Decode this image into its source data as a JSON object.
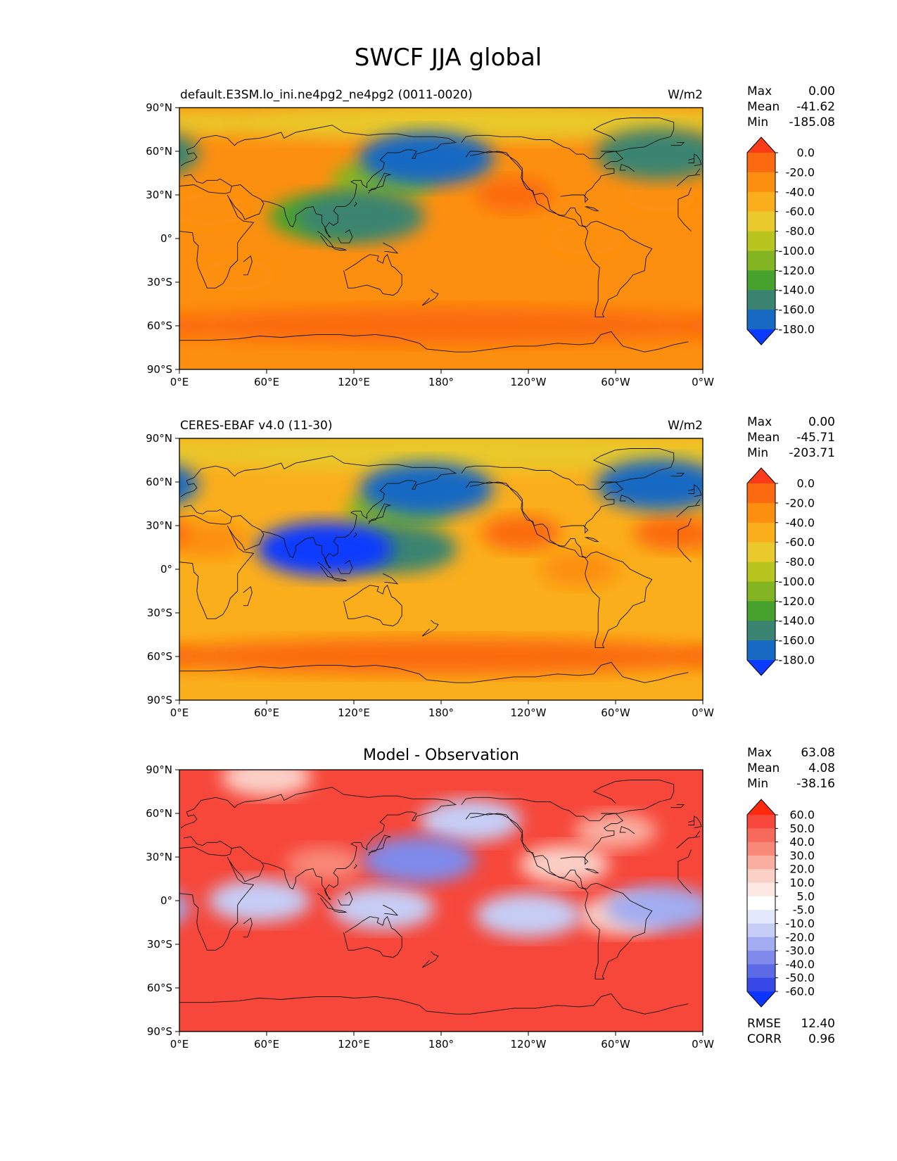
{
  "figure": {
    "title": "SWCF JJA global"
  },
  "chart_data": [
    {
      "type": "heatmap",
      "title": "default.E3SM.lo_ini.ne4pg2_ne4pg2 (0011-0020)",
      "units": "W/m2",
      "xticks": [
        "0°E",
        "60°E",
        "120°E",
        "180°",
        "120°W",
        "60°W",
        "0°W"
      ],
      "yticks": [
        "90°N",
        "60°N",
        "30°N",
        "0°",
        "30°S",
        "60°S",
        "90°S"
      ],
      "xlim": [
        0,
        360
      ],
      "ylim": [
        -90,
        90
      ],
      "stats": {
        "max": "0.00",
        "mean": "-41.62",
        "min": "-185.08"
      },
      "stat_labels": {
        "max": "Max",
        "mean": "Mean",
        "min": "Min"
      },
      "colorbar": {
        "labels": [
          "0.0",
          "-20.0",
          "-40.0",
          "-60.0",
          "-80.0",
          "-100.0",
          "-120.0",
          "-140.0",
          "-160.0",
          "-180.0"
        ],
        "colors": [
          "#ff3a1a",
          "#fb6a10",
          "#fd8f10",
          "#fbae1c",
          "#e9c92c",
          "#b9c51f",
          "#83b522",
          "#47a12d",
          "#3a8471",
          "#1769c2",
          "#0a3bff"
        ]
      },
      "fields": [
        {
          "lat": 0,
          "lon": 180,
          "value": -38
        },
        {
          "lat": -60,
          "lon": 180,
          "value": -19
        },
        {
          "lat": 55,
          "lon": 170,
          "value": -175
        },
        {
          "lat": 58,
          "lon": 330,
          "value": -160
        },
        {
          "lat": 15,
          "lon": 125,
          "value": -160
        },
        {
          "lat": 15,
          "lon": 100,
          "value": -130
        },
        {
          "lat": 40,
          "lon": 140,
          "value": -110
        },
        {
          "lat": 30,
          "lon": 230,
          "value": -20
        },
        {
          "lat": 0,
          "lon": 280,
          "value": -22
        },
        {
          "lat": 20,
          "lon": 20,
          "value": -22
        },
        {
          "lat": 30,
          "lon": 330,
          "value": -22
        },
        {
          "lat": -25,
          "lon": 40,
          "value": -25
        },
        {
          "lat": 80,
          "lon": 200,
          "value": -62
        }
      ]
    },
    {
      "type": "heatmap",
      "title": "CERES-EBAF v4.0 (11-30)",
      "units": "W/m2",
      "xticks": [
        "0°E",
        "60°E",
        "120°E",
        "180°",
        "120°W",
        "60°W",
        "0°W"
      ],
      "yticks": [
        "90°N",
        "60°N",
        "30°N",
        "0°",
        "30°S",
        "60°S",
        "90°S"
      ],
      "xlim": [
        0,
        360
      ],
      "ylim": [
        -90,
        90
      ],
      "stats": {
        "max": "0.00",
        "mean": "-45.71",
        "min": "-203.71"
      },
      "stat_labels": {
        "max": "Max",
        "mean": "Mean",
        "min": "Min"
      },
      "colorbar": {
        "labels": [
          "0.0",
          "-20.0",
          "-40.0",
          "-60.0",
          "-80.0",
          "-100.0",
          "-120.0",
          "-140.0",
          "-160.0",
          "-180.0"
        ],
        "colors": [
          "#ff3a1a",
          "#fb6a10",
          "#fd8f10",
          "#fbae1c",
          "#e9c92c",
          "#b9c51f",
          "#83b522",
          "#47a12d",
          "#3a8471",
          "#1769c2",
          "#0a3bff"
        ]
      },
      "fields": [
        {
          "lat": 0,
          "lon": 180,
          "value": -45
        },
        {
          "lat": -60,
          "lon": 180,
          "value": -19
        },
        {
          "lat": 55,
          "lon": 170,
          "value": -180
        },
        {
          "lat": 58,
          "lon": 330,
          "value": -165
        },
        {
          "lat": 14,
          "lon": 100,
          "value": -185
        },
        {
          "lat": 14,
          "lon": 150,
          "value": -150
        },
        {
          "lat": 40,
          "lon": 150,
          "value": -120
        },
        {
          "lat": 25,
          "lon": 235,
          "value": -20
        },
        {
          "lat": 0,
          "lon": 275,
          "value": -22
        },
        {
          "lat": 20,
          "lon": 20,
          "value": -22
        },
        {
          "lat": 25,
          "lon": 340,
          "value": -20
        },
        {
          "lat": 80,
          "lon": 190,
          "value": -62
        }
      ]
    },
    {
      "type": "heatmap",
      "title": "Model - Observation",
      "xticks": [
        "0°E",
        "60°E",
        "120°E",
        "180°",
        "120°W",
        "60°W",
        "0°W"
      ],
      "yticks": [
        "90°N",
        "60°N",
        "30°N",
        "0°",
        "30°S",
        "60°S",
        "90°S"
      ],
      "xlim": [
        0,
        360
      ],
      "ylim": [
        -90,
        90
      ],
      "stats": {
        "max": "63.08",
        "mean": "4.08",
        "min": "-38.16"
      },
      "stat_labels": {
        "max": "Max",
        "mean": "Mean",
        "min": "Min"
      },
      "metrics": {
        "rmse": "12.40",
        "corr": "0.96"
      },
      "metric_labels": {
        "rmse": "RMSE",
        "corr": "CORR"
      },
      "colorbar": {
        "labels": [
          "60.0",
          "50.0",
          "40.0",
          "30.0",
          "20.0",
          "10.0",
          "5.0",
          "-5.0",
          "-10.0",
          "-20.0",
          "-30.0",
          "-40.0",
          "-50.0",
          "-60.0"
        ],
        "colors": [
          "#ff2a0d",
          "#f6473a",
          "#f66a5c",
          "#f88878",
          "#f9aea0",
          "#fbd0c7",
          "#fde9e4",
          "#ffffff",
          "#e4e8fb",
          "#c6cdf6",
          "#a2acf0",
          "#7f8aeb",
          "#5d6ae6",
          "#3849e8",
          "#0a36ff"
        ]
      },
      "fields": [
        {
          "lat": 8,
          "lon": 180,
          "value": 58
        },
        {
          "lat": 25,
          "lon": 100,
          "value": 38
        },
        {
          "lat": 28,
          "lon": 165,
          "value": -36
        },
        {
          "lat": 48,
          "lon": 300,
          "value": 28
        },
        {
          "lat": -5,
          "lon": 330,
          "value": -25
        },
        {
          "lat": -10,
          "lon": 240,
          "value": -20
        },
        {
          "lat": -10,
          "lon": 305,
          "value": 15
        },
        {
          "lat": 25,
          "lon": 265,
          "value": 12
        },
        {
          "lat": 85,
          "lon": 60,
          "value": 12
        },
        {
          "lat": 55,
          "lon": 200,
          "value": -12
        },
        {
          "lat": -5,
          "lon": 140,
          "value": -15
        },
        {
          "lat": 0,
          "lon": 55,
          "value": -12
        }
      ]
    }
  ]
}
